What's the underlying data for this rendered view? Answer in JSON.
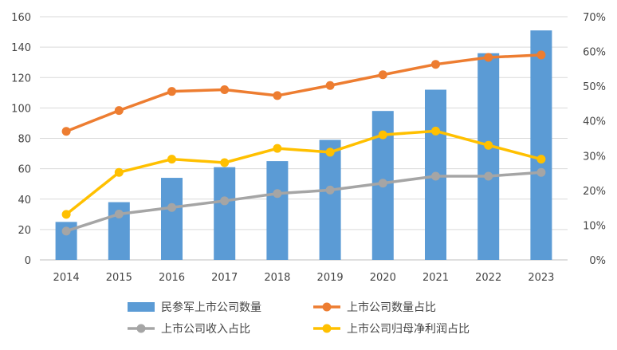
{
  "chart_data": {
    "type": "bar+line",
    "categories": [
      "2014",
      "2015",
      "2016",
      "2017",
      "2018",
      "2019",
      "2020",
      "2021",
      "2022",
      "2023"
    ],
    "bar_series": {
      "name": "民参军上市公司数量",
      "color": "#5B9BD5",
      "values": [
        25,
        38,
        54,
        61,
        65,
        79,
        98,
        112,
        136,
        151
      ]
    },
    "line_series": [
      {
        "name": "上市公司数量占比",
        "color": "#ED7D31",
        "values": [
          37,
          43,
          48.5,
          49,
          47.3,
          50.2,
          53.3,
          56.3,
          58.3,
          59
        ]
      },
      {
        "name": "上市公司收入占比",
        "color": "#A5A5A5",
        "values": [
          8.3,
          13.2,
          15.1,
          17,
          19.1,
          20.1,
          22.1,
          24.1,
          24.1,
          25.2
        ]
      },
      {
        "name": "上市公司归母净利润占比",
        "color": "#FFC000",
        "values": [
          13.1,
          25.2,
          29,
          28,
          32.1,
          31,
          36,
          37.1,
          33,
          29
        ]
      }
    ],
    "y_left": {
      "min": 0,
      "max": 160,
      "ticks": [
        "0",
        "20",
        "40",
        "60",
        "80",
        "100",
        "120",
        "140",
        "160"
      ]
    },
    "y_right": {
      "min": 0,
      "max": 70,
      "ticks": [
        "0%",
        "10%",
        "20%",
        "30%",
        "40%",
        "50%",
        "60%",
        "70%"
      ]
    },
    "gridlines": true,
    "legend_position": "bottom"
  }
}
